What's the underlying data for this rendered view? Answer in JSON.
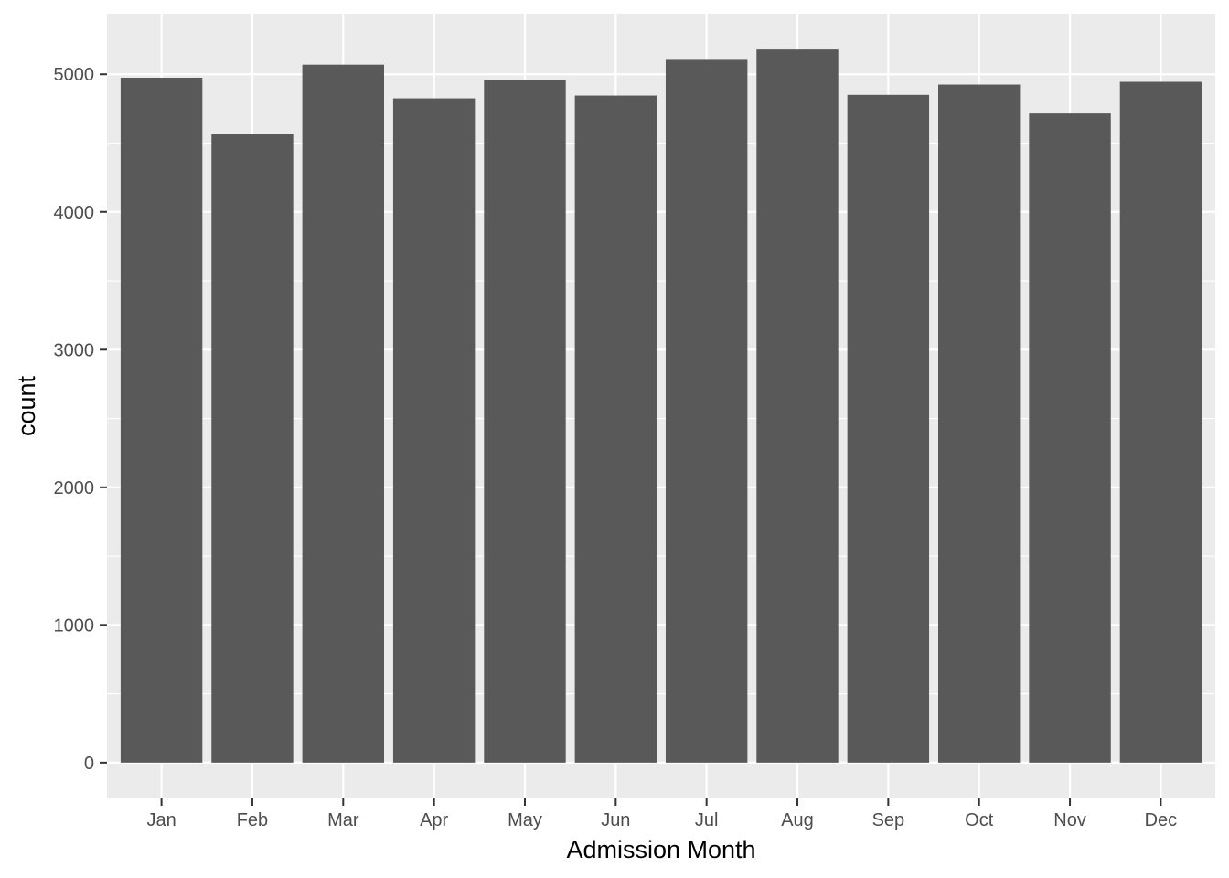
{
  "chart_data": {
    "type": "bar",
    "title": "",
    "xlabel": "Admission Month",
    "ylabel": "count",
    "categories": [
      "Jan",
      "Feb",
      "Mar",
      "Apr",
      "May",
      "Jun",
      "Jul",
      "Aug",
      "Sep",
      "Oct",
      "Nov",
      "Dec"
    ],
    "values": [
      4975,
      4565,
      5070,
      4825,
      4960,
      4845,
      5105,
      5180,
      4850,
      4925,
      4715,
      4945
    ],
    "ylim": [
      -260,
      5440
    ],
    "yticks": [
      0,
      1000,
      2000,
      3000,
      4000,
      5000
    ],
    "grid": true,
    "legend": "none",
    "colors": {
      "panel": "#ebebeb",
      "grid": "#ffffff",
      "bar": "#595959",
      "tick_text": "#4d4d4d",
      "tick_mark": "#333333",
      "title_text": "#000000"
    }
  }
}
